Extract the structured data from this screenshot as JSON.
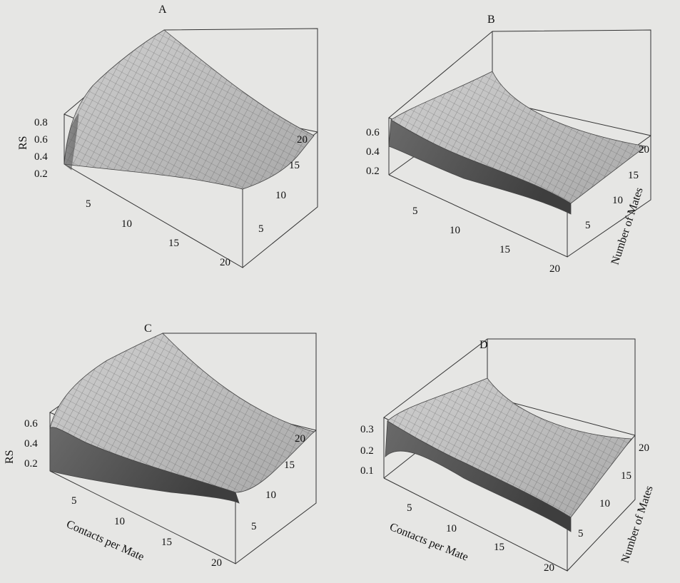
{
  "chart_data": [
    {
      "type": "surface",
      "title": "A",
      "xlabel": "",
      "ylabel": "",
      "zlabel": "RS",
      "x_ticks": [
        "5",
        "10",
        "15",
        "20"
      ],
      "y_ticks": [
        "5",
        "10",
        "15",
        "20"
      ],
      "z_ticks": [
        "0.2",
        "0.4",
        "0.6",
        "0.8"
      ],
      "xlim": [
        1,
        20
      ],
      "ylim": [
        1,
        20
      ],
      "zlim": [
        0.2,
        0.8
      ],
      "surface_values": {
        "x": [
          1,
          5,
          10,
          15,
          20
        ],
        "y": [
          1,
          5,
          10,
          15,
          20
        ],
        "z_rows_by_x": [
          [
            0.3,
            0.82,
            0.82,
            0.81,
            0.8
          ],
          [
            0.26,
            0.6,
            0.66,
            0.67,
            0.68
          ],
          [
            0.24,
            0.45,
            0.52,
            0.55,
            0.56
          ],
          [
            0.22,
            0.36,
            0.43,
            0.46,
            0.48
          ],
          [
            0.21,
            0.3,
            0.37,
            0.4,
            0.42
          ]
        ]
      }
    },
    {
      "type": "surface",
      "title": "B",
      "xlabel": "",
      "ylabel": "Number of Mates",
      "zlabel": "",
      "x_ticks": [
        "5",
        "10",
        "15",
        "20"
      ],
      "y_ticks": [
        "5",
        "10",
        "15",
        "20"
      ],
      "z_ticks": [
        "0.2",
        "0.4",
        "0.6"
      ],
      "xlim": [
        1,
        20
      ],
      "ylim": [
        1,
        20
      ],
      "zlim": [
        0.2,
        0.6
      ],
      "surface_values": {
        "x": [
          1,
          5,
          10,
          15,
          20
        ],
        "y": [
          1,
          5,
          10,
          15,
          20
        ],
        "z_rows_by_x": [
          [
            0.36,
            0.62,
            0.62,
            0.62,
            0.62
          ],
          [
            0.22,
            0.4,
            0.43,
            0.44,
            0.45
          ],
          [
            0.2,
            0.36,
            0.4,
            0.41,
            0.42
          ],
          [
            0.19,
            0.35,
            0.39,
            0.4,
            0.41
          ],
          [
            0.18,
            0.34,
            0.38,
            0.4,
            0.41
          ]
        ]
      }
    },
    {
      "type": "surface",
      "title": "C",
      "xlabel": "Contacts per Mate",
      "ylabel": "",
      "zlabel": "RS",
      "x_ticks": [
        "5",
        "10",
        "15",
        "20"
      ],
      "y_ticks": [
        "5",
        "10",
        "15",
        "20"
      ],
      "z_ticks": [
        "0.2",
        "0.4",
        "0.6"
      ],
      "xlim": [
        1,
        20
      ],
      "ylim": [
        1,
        20
      ],
      "zlim": [
        0.1,
        0.7
      ],
      "surface_values": {
        "x": [
          1,
          5,
          10,
          15,
          20
        ],
        "y": [
          1,
          5,
          10,
          15,
          20
        ],
        "z_rows_by_x": [
          [
            0.2,
            0.66,
            0.68,
            0.68,
            0.68
          ],
          [
            0.17,
            0.45,
            0.52,
            0.54,
            0.55
          ],
          [
            0.15,
            0.33,
            0.4,
            0.43,
            0.45
          ],
          [
            0.14,
            0.27,
            0.34,
            0.37,
            0.39
          ],
          [
            0.13,
            0.23,
            0.29,
            0.33,
            0.35
          ]
        ]
      }
    },
    {
      "type": "surface",
      "title": "D",
      "xlabel": "Contacts per Mate",
      "ylabel": "Number of Mates",
      "zlabel": "",
      "x_ticks": [
        "5",
        "10",
        "15",
        "20"
      ],
      "y_ticks": [
        "5",
        "10",
        "15",
        "20"
      ],
      "z_ticks": [
        "0.1",
        "0.2",
        "0.3"
      ],
      "xlim": [
        1,
        20
      ],
      "ylim": [
        1,
        20
      ],
      "zlim": [
        0.05,
        0.35
      ],
      "surface_values": {
        "x": [
          1,
          5,
          10,
          15,
          20
        ],
        "y": [
          1,
          5,
          10,
          15,
          20
        ],
        "z_rows_by_x": [
          [
            0.14,
            0.32,
            0.33,
            0.33,
            0.33
          ],
          [
            0.1,
            0.24,
            0.25,
            0.25,
            0.25
          ],
          [
            0.09,
            0.22,
            0.23,
            0.24,
            0.24
          ],
          [
            0.08,
            0.21,
            0.23,
            0.23,
            0.24
          ],
          [
            0.08,
            0.21,
            0.22,
            0.23,
            0.23
          ]
        ]
      }
    }
  ],
  "colors": {
    "background": "#e6e6e4",
    "surface_light": "#c7c7c7",
    "surface_dark": "#4a4a4a",
    "box_lines": "#333333",
    "text": "#111111"
  }
}
